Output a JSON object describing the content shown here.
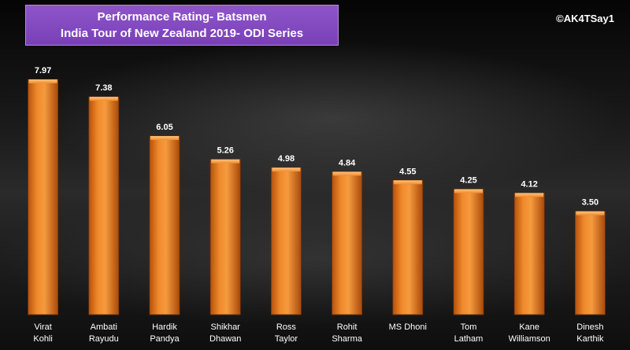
{
  "header": {
    "title_line1": "Performance  Rating- Batsmen",
    "title_line2": "India Tour of New Zealand 2019- ODI Series",
    "watermark": "©AK4TSay1"
  },
  "colors": {
    "bar": "#e8761e",
    "title_bg": "#7a3fb8"
  },
  "chart_data": {
    "type": "bar",
    "title": "Performance  Rating- Batsmen / India Tour of New Zealand 2019- ODI Series",
    "categories": [
      [
        "Virat",
        "Kohli"
      ],
      [
        "Ambati",
        "Rayudu"
      ],
      [
        "Hardik",
        "Pandya"
      ],
      [
        "Shikhar",
        "Dhawan"
      ],
      [
        "Ross",
        "Taylor"
      ],
      [
        "Rohit",
        "Sharma"
      ],
      [
        "MS Dhoni"
      ],
      [
        "Tom",
        "Latham"
      ],
      [
        "Kane",
        "Williamson"
      ],
      [
        "Dinesh",
        "Karthik"
      ]
    ],
    "values": [
      7.97,
      7.38,
      6.05,
      5.26,
      4.98,
      4.84,
      4.55,
      4.25,
      4.12,
      3.5
    ],
    "value_labels": [
      "7.97",
      "7.38",
      "6.05",
      "5.26",
      "4.98",
      "4.84",
      "4.55",
      "4.25",
      "4.12",
      "3.50"
    ],
    "ylim": [
      0,
      8.0
    ],
    "grid": false,
    "legend": "none"
  }
}
